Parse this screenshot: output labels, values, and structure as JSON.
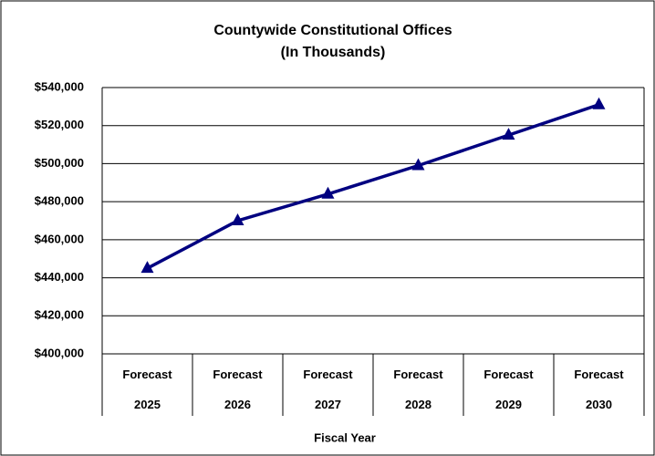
{
  "chart_data": {
    "type": "line",
    "title": "Countywide Constitutional Offices",
    "subtitle": "(In Thousands)",
    "x_label": "Fiscal Year",
    "categories": [
      "Forecast 2025",
      "Forecast 2026",
      "Forecast 2027",
      "Forecast 2028",
      "Forecast 2029",
      "Forecast 2030"
    ],
    "series": [
      {
        "name": "Countywide Constitutional Offices",
        "color": "#000080",
        "values": [
          445000,
          470000,
          484000,
          499000,
          515000,
          531000
        ]
      }
    ],
    "ylim": [
      400000,
      540000
    ],
    "yticks": [
      {
        "value": 400000,
        "label": "$400,000"
      },
      {
        "value": 420000,
        "label": "$420,000"
      },
      {
        "value": 440000,
        "label": "$440,000"
      },
      {
        "value": 460000,
        "label": "$460,000"
      },
      {
        "value": 480000,
        "label": "$480,000"
      },
      {
        "value": 500000,
        "label": "$500,000"
      },
      {
        "value": 520000,
        "label": "$520,000"
      },
      {
        "value": 540000,
        "label": "$540,000"
      }
    ],
    "grid": true
  }
}
